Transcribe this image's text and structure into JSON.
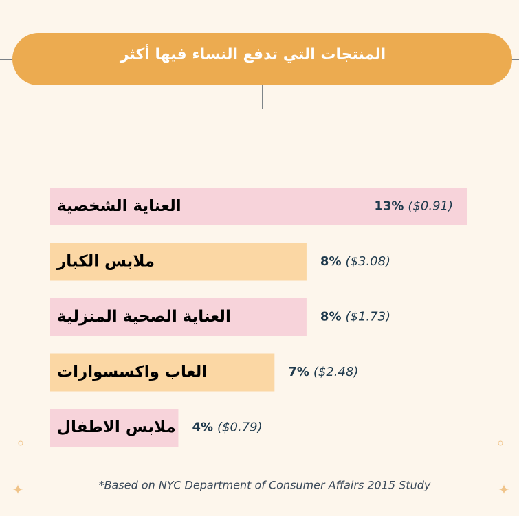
{
  "chart_data": {
    "type": "bar",
    "orientation": "horizontal",
    "title": "المنتجات التي تدفع النساء فيها أكثر",
    "categories": [
      "العناية الشخصية",
      "ملابس الكبار",
      "العناية الصحية المنزلية",
      "العاب واكسسوارات",
      "ملابس الاطفال"
    ],
    "values": [
      13,
      8,
      8,
      7,
      4
    ],
    "value_labels": [
      "13%",
      "8%",
      "8%",
      "7%",
      "4%"
    ],
    "price_labels": [
      "($0.91)",
      "($3.08)",
      "($1.73)",
      "($2.48)",
      "($0.79)"
    ],
    "colors": [
      "#f7d3da",
      "#fbd7a4",
      "#f7d3da",
      "#fbd7a4",
      "#f7d3da"
    ],
    "footnote": "*Based on NYC Department of Consumer Affairs 2015 Study"
  }
}
